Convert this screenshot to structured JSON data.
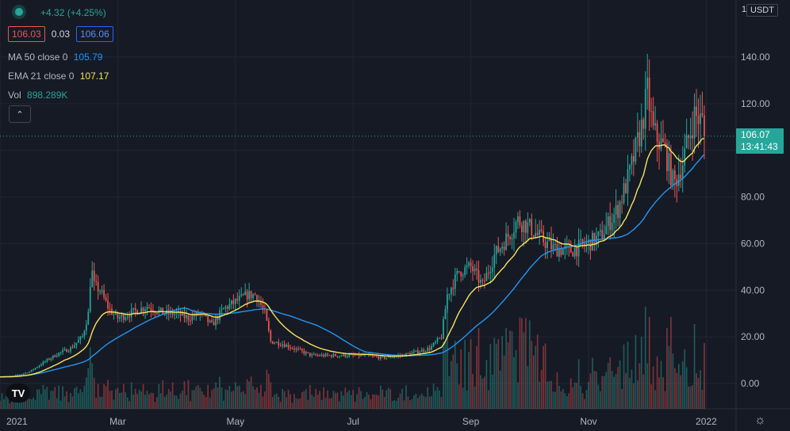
{
  "header": {
    "change": "+4.32 (+4.25%)",
    "bid": "106.03",
    "spread": "0.03",
    "ask": "106.06",
    "ma_label": "MA 50 close 0",
    "ma_value": "105.79",
    "ema_label": "EMA 21 close 0",
    "ema_value": "107.17",
    "vol_label": "Vol",
    "vol_value": "898.289K"
  },
  "price_axis": {
    "unit": "USDT",
    "top_fragment": "1",
    "last_price": "106.07",
    "countdown": "13:41:43"
  },
  "colors": {
    "background": "#161a25",
    "grid": "#232632",
    "up": "#26a69a",
    "down": "#ef5350",
    "ma": "#2196f3",
    "ema": "#f5e55c",
    "text": "#b2b5be"
  },
  "icons": {
    "logo": "tradingview-logo-icon",
    "collapse": "chevron-up-icon",
    "settings": "gear-icon"
  },
  "chart_data": {
    "type": "candlestick",
    "y_axis": {
      "ticks": [
        "140.00",
        "120.00",
        "100.00",
        "80.00",
        "60.00",
        "40.00",
        "20.00",
        "0.00"
      ],
      "ylim": [
        -5,
        150
      ]
    },
    "x_axis": {
      "ticks": [
        "2021",
        "Mar",
        "May",
        "Jul",
        "Sep",
        "Nov",
        "2022"
      ],
      "range_months": [
        0,
        12
      ]
    },
    "grid": true,
    "series": [
      {
        "name": "MA 50 close 0",
        "kind": "line"
      },
      {
        "name": "EMA 21 close 0",
        "kind": "line"
      },
      {
        "name": "Vol",
        "kind": "bar"
      }
    ],
    "close_keypoints": [
      [
        0,
        3
      ],
      [
        0.2,
        3
      ],
      [
        0.5,
        5
      ],
      [
        0.8,
        10
      ],
      [
        1.0,
        13
      ],
      [
        1.2,
        15
      ],
      [
        1.4,
        20
      ],
      [
        1.5,
        30
      ],
      [
        1.55,
        50
      ],
      [
        1.6,
        42
      ],
      [
        1.7,
        40
      ],
      [
        1.85,
        32
      ],
      [
        2.0,
        28
      ],
      [
        2.2,
        30
      ],
      [
        2.5,
        33
      ],
      [
        2.8,
        30
      ],
      [
        3.0,
        30
      ],
      [
        3.2,
        28
      ],
      [
        3.4,
        30
      ],
      [
        3.6,
        25
      ],
      [
        3.8,
        32
      ],
      [
        4.0,
        35
      ],
      [
        4.2,
        38
      ],
      [
        4.35,
        38
      ],
      [
        4.5,
        30
      ],
      [
        4.6,
        18
      ],
      [
        4.8,
        17
      ],
      [
        5.0,
        15
      ],
      [
        5.3,
        12
      ],
      [
        5.6,
        12
      ],
      [
        5.9,
        12
      ],
      [
        6.2,
        12
      ],
      [
        6.5,
        11
      ],
      [
        6.8,
        12
      ],
      [
        7.0,
        13
      ],
      [
        7.3,
        15
      ],
      [
        7.5,
        20
      ],
      [
        7.6,
        38
      ],
      [
        7.8,
        48
      ],
      [
        8.0,
        50
      ],
      [
        8.2,
        42
      ],
      [
        8.4,
        55
      ],
      [
        8.6,
        62
      ],
      [
        8.8,
        70
      ],
      [
        9.0,
        67
      ],
      [
        9.2,
        62
      ],
      [
        9.4,
        58
      ],
      [
        9.7,
        57
      ],
      [
        10.0,
        60
      ],
      [
        10.2,
        63
      ],
      [
        10.5,
        75
      ],
      [
        10.7,
        90
      ],
      [
        10.9,
        110
      ],
      [
        11.0,
        125
      ],
      [
        11.1,
        108
      ],
      [
        11.3,
        100
      ],
      [
        11.45,
        85
      ],
      [
        11.6,
        95
      ],
      [
        11.8,
        115
      ],
      [
        11.95,
        112
      ],
      [
        12.0,
        106
      ]
    ],
    "last_close": 106.07
  }
}
